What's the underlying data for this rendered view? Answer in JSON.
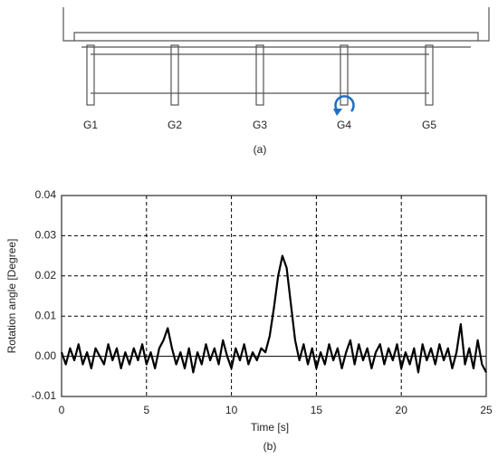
{
  "diagram": {
    "labels": [
      "G1",
      "G2",
      "G3",
      "G4",
      "G5"
    ],
    "caption": "(a)"
  },
  "chart_data": {
    "type": "line",
    "caption": "(b)",
    "x_label": "Time [s]",
    "y_label": "Rotation angle [Degree]",
    "color": "#000000",
    "x": [
      0,
      0.25,
      0.5,
      0.75,
      1,
      1.25,
      1.5,
      1.75,
      2,
      2.25,
      2.5,
      2.75,
      3,
      3.25,
      3.5,
      3.75,
      4,
      4.25,
      4.5,
      4.75,
      5,
      5.25,
      5.5,
      5.75,
      6,
      6.25,
      6.5,
      6.75,
      7,
      7.25,
      7.5,
      7.75,
      8,
      8.25,
      8.5,
      8.75,
      9,
      9.25,
      9.5,
      9.75,
      10,
      10.25,
      10.5,
      10.75,
      11,
      11.25,
      11.5,
      11.75,
      12,
      12.25,
      12.5,
      12.75,
      13,
      13.25,
      13.5,
      13.75,
      14,
      14.25,
      14.5,
      14.75,
      15,
      15.25,
      15.5,
      15.75,
      16,
      16.25,
      16.5,
      16.75,
      17,
      17.25,
      17.5,
      17.75,
      18,
      18.25,
      18.5,
      18.75,
      19,
      19.25,
      19.5,
      19.75,
      20,
      20.25,
      20.5,
      20.75,
      21,
      21.25,
      21.5,
      21.75,
      22,
      22.25,
      22.5,
      22.75,
      23,
      23.25,
      23.5,
      23.75,
      24,
      24.25,
      24.5,
      24.75,
      25
    ],
    "values": [
      0.001,
      -0.002,
      0.002,
      -0.001,
      0.003,
      -0.002,
      0.001,
      -0.003,
      0.002,
      0,
      -0.002,
      0.003,
      -0.001,
      0.002,
      -0.003,
      0.001,
      -0.002,
      0.002,
      -0.001,
      0.003,
      -0.002,
      0.001,
      -0.003,
      0.002,
      0.004,
      0.007,
      0.002,
      -0.002,
      0.001,
      -0.003,
      0.002,
      -0.004,
      0.001,
      -0.002,
      0.003,
      -0.001,
      0.002,
      -0.002,
      0.004,
      0,
      -0.003,
      0.002,
      -0.001,
      0.003,
      -0.002,
      0.001,
      -0.001,
      0.002,
      0.001,
      0.005,
      0.012,
      0.02,
      0.025,
      0.022,
      0.013,
      0.004,
      -0.001,
      0.003,
      -0.002,
      0.002,
      -0.003,
      0.001,
      -0.002,
      0.003,
      -0.001,
      0.002,
      -0.003,
      0.001,
      0.004,
      -0.002,
      0.003,
      -0.001,
      0.002,
      -0.003,
      0.001,
      0.003,
      -0.002,
      0.002,
      -0.001,
      0.003,
      -0.003,
      0.001,
      -0.002,
      0.002,
      -0.004,
      0.003,
      -0.001,
      0.002,
      -0.002,
      0.003,
      -0.001,
      0.002,
      -0.003,
      0.001,
      0.008,
      -0.002,
      0.002,
      -0.003,
      0.004,
      -0.002,
      -0.004
    ],
    "xlim": [
      0,
      25
    ],
    "xticks": [
      0,
      5,
      10,
      15,
      20,
      25
    ],
    "ylim": [
      -0.01,
      0.04
    ],
    "yticks": [
      -0.01,
      {
        "value": 0,
        "label": "0.00"
      },
      0.01,
      0.02,
      0.03,
      0.04
    ],
    "grid": true
  }
}
